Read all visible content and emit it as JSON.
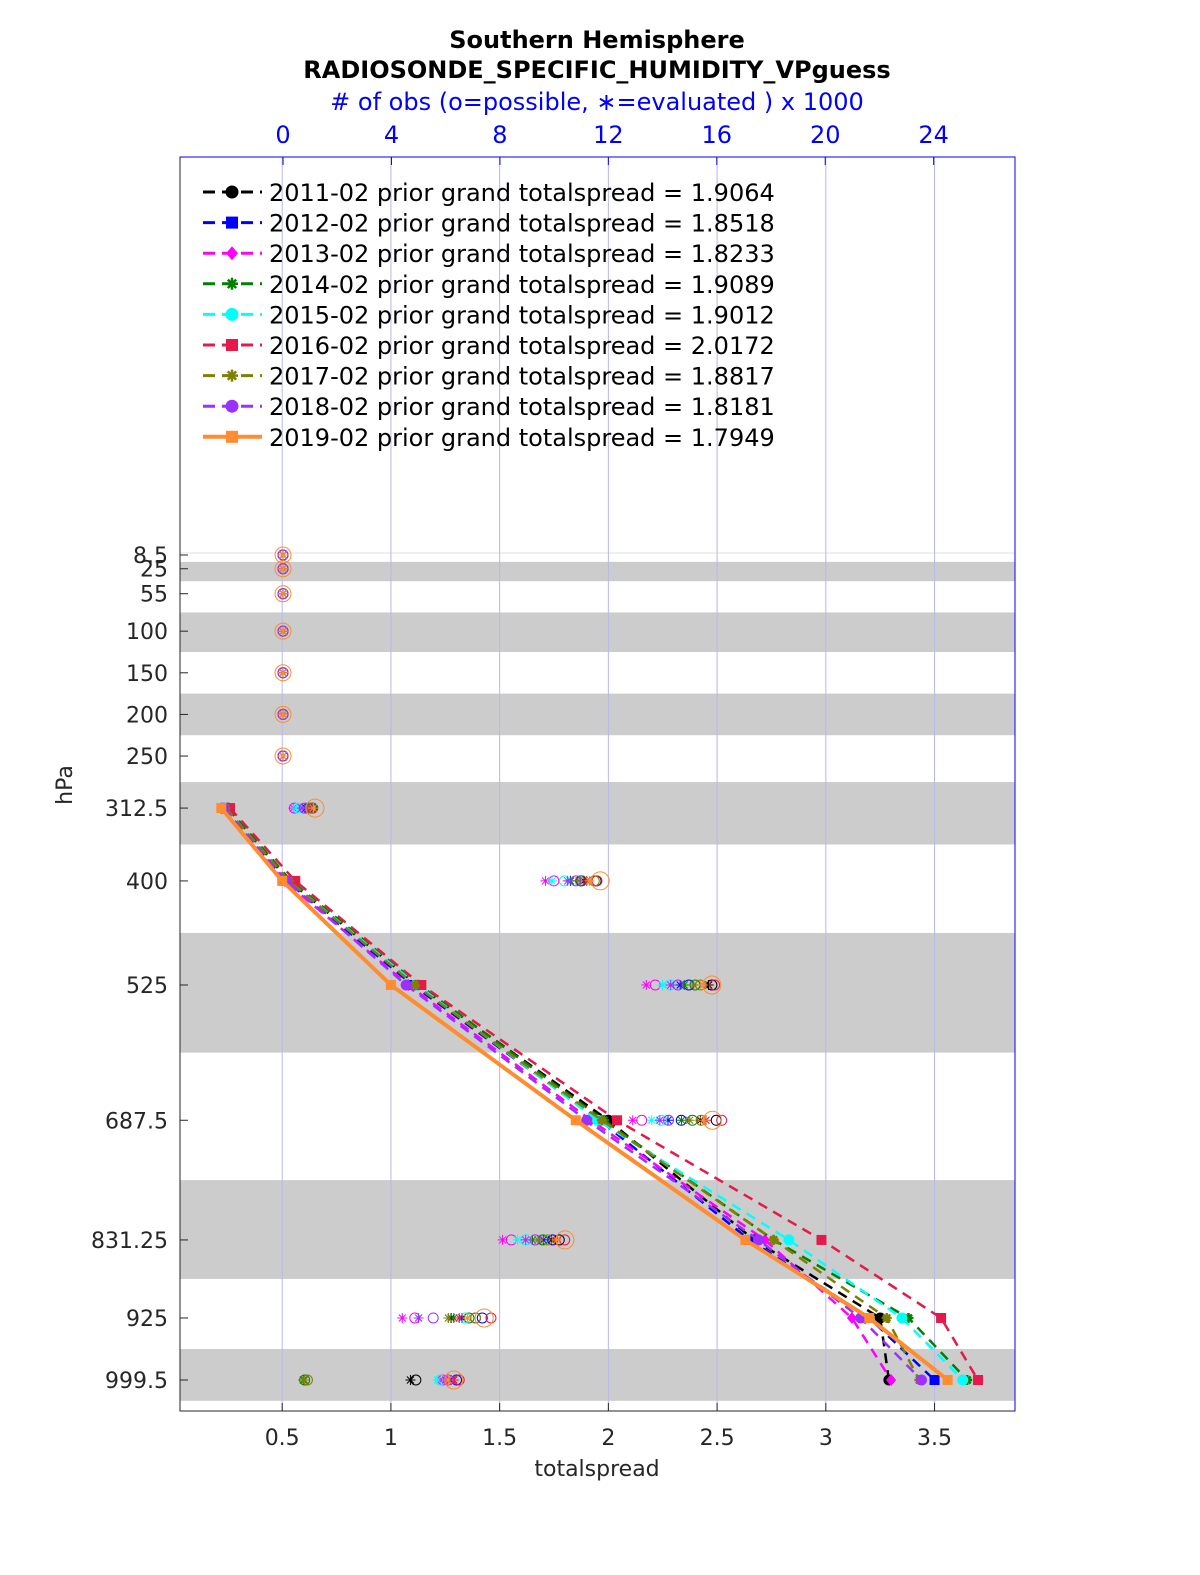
{
  "chart_data": {
    "type": "line",
    "title": "Southern Hemisphere",
    "subtitle": "RADIOSONDE_SPECIFIC_HUMIDITY_VPguess",
    "top_axis_label": "# of obs (o=possible, ∗=evaluated ) x 1000",
    "xlabel": "totalspread",
    "ylabel": "hPa",
    "xlim": [
      0.03,
      3.87
    ],
    "x_ticks": [
      "0.5",
      "1",
      "1.5",
      "2",
      "2.5",
      "3",
      "3.5"
    ],
    "top_xlim": [
      -3.8,
      27.0
    ],
    "top_ticks": [
      "0",
      "4",
      "8",
      "12",
      "16",
      "20",
      "24"
    ],
    "y_ticks": [
      "8.5",
      "25",
      "55",
      "100",
      "150",
      "200",
      "250",
      "312.5",
      "400",
      "525",
      "687.5",
      "831.25",
      "925",
      "999.5"
    ],
    "y_axis": "pressure (hPa), increasing downward",
    "grid": "vertical lines only",
    "legend_position": "top-left",
    "colors": {
      "top_axis": "#0000ff",
      "band": "#cccccc",
      "grid": "#b8b8e8"
    },
    "levels": [
      312.5,
      400,
      525,
      687.5,
      831.25,
      925,
      999.5
    ],
    "series": [
      {
        "name": "2011-02",
        "legend": "2011-02 prior grand totalspread = 1.9064",
        "color": "#000000",
        "style": "dashed",
        "marker": "circle",
        "values": [
          0.25,
          0.53,
          1.12,
          2.0,
          2.67,
          3.25,
          3.29
        ],
        "obs_possible": [
          1.08,
          11.55,
          15.82,
          15.98,
          10.19,
          7.1,
          4.9
        ],
        "obs_evaluated": [
          0.98,
          11.1,
          15.7,
          15.4,
          9.9,
          6.2,
          4.7
        ]
      },
      {
        "name": "2012-02",
        "legend": "2012-02 prior grand totalspread = 1.8518",
        "color": "#0000ff",
        "style": "dashed",
        "marker": "square",
        "values": [
          0.24,
          0.52,
          1.1,
          1.96,
          2.65,
          3.2,
          3.5
        ],
        "obs_possible": [
          0.92,
          10.98,
          14.97,
          14.69,
          9.95,
          7.35,
          6.4
        ],
        "obs_evaluated": [
          0.84,
          10.6,
          14.65,
          14.2,
          9.6,
          6.6,
          6.2
        ]
      },
      {
        "name": "2013-02",
        "legend": "2013-02 prior grand totalspread = 1.8233",
        "color": "#ff00ff",
        "style": "dashed",
        "marker": "diamond",
        "values": [
          0.22,
          0.51,
          1.08,
          1.92,
          2.72,
          3.12,
          3.3
        ],
        "obs_possible": [
          0.42,
          9.99,
          13.73,
          13.23,
          8.42,
          4.86,
          5.9
        ],
        "obs_evaluated": [
          0.38,
          9.68,
          13.4,
          12.9,
          8.1,
          4.4,
          5.8
        ]
      },
      {
        "name": "2014-02",
        "legend": "2014-02 prior grand totalspread = 1.9089",
        "color": "#008000",
        "style": "dashed",
        "marker": "star",
        "values": [
          0.25,
          0.54,
          1.13,
          1.98,
          2.76,
          3.38,
          3.65
        ],
        "obs_possible": [
          1.05,
          11.02,
          15.2,
          15.1,
          9.58,
          6.86,
          0.8
        ],
        "obs_evaluated": [
          0.95,
          10.61,
          14.8,
          14.7,
          9.2,
          6.3,
          0.75
        ]
      },
      {
        "name": "2015-02",
        "legend": "2015-02 prior grand totalspread = 1.9012",
        "color": "#00ffff",
        "style": "dashed",
        "marker": "circle",
        "values": [
          0.24,
          0.53,
          1.12,
          1.95,
          2.83,
          3.35,
          3.63
        ],
        "obs_possible": [
          0.55,
          10.38,
          14.29,
          13.96,
          8.96,
          6.72,
          5.8
        ],
        "obs_evaluated": [
          0.5,
          9.92,
          14.0,
          13.6,
          8.65,
          6.1,
          5.7
        ]
      },
      {
        "name": "2016-02",
        "legend": "2016-02 prior grand totalspread = 2.0172",
        "color": "#e6194b",
        "style": "dashed",
        "marker": "square",
        "values": [
          0.26,
          0.56,
          1.14,
          2.04,
          2.98,
          3.53,
          3.7
        ],
        "obs_possible": [
          1.1,
          11.58,
          15.92,
          16.18,
          10.39,
          7.67,
          6.5
        ],
        "obs_evaluated": [
          1.0,
          11.2,
          15.5,
          15.6,
          10.0,
          6.5,
          6.3
        ]
      },
      {
        "name": "2017-02",
        "legend": "2017-02 prior grand totalspread = 1.8817",
        "color": "#808000",
        "style": "dashed",
        "marker": "star",
        "values": [
          0.24,
          0.53,
          1.11,
          1.97,
          2.76,
          3.28,
          3.43
        ],
        "obs_possible": [
          1.01,
          11.48,
          15.4,
          15.42,
          9.76,
          7.1,
          0.9
        ],
        "obs_evaluated": [
          0.9,
          10.92,
          15.15,
          15.0,
          9.4,
          6.1,
          0.8
        ]
      },
      {
        "name": "2018-02",
        "legend": "2018-02 prior grand totalspread = 1.8181",
        "color": "#9b30ff",
        "style": "dashed",
        "marker": "circle",
        "values": [
          0.23,
          0.52,
          1.07,
          1.9,
          2.69,
          3.16,
          3.44
        ],
        "obs_possible": [
          0.79,
          10.8,
          14.57,
          14.22,
          9.3,
          5.54,
          6.1
        ],
        "obs_evaluated": [
          0.7,
          10.5,
          14.3,
          13.9,
          8.95,
          5.0,
          6.0
        ]
      },
      {
        "name": "2019-02",
        "legend": "2019-02 prior grand totalspread = 1.7949",
        "color": "#ff8c2e",
        "style": "solid",
        "marker": "square",
        "values": [
          0.22,
          0.5,
          1.0,
          1.85,
          2.63,
          3.2,
          3.56
        ],
        "obs_possible": [
          1.18,
          11.7,
          15.82,
          15.84,
          10.4,
          7.42,
          6.3
        ],
        "obs_evaluated": [
          1.12,
          11.3,
          15.5,
          15.5,
          10.1,
          6.8,
          6.1
        ]
      }
    ],
    "empty_levels": [
      8.5,
      25,
      55,
      100,
      150,
      200,
      250
    ],
    "empty_level_obs": 0
  }
}
